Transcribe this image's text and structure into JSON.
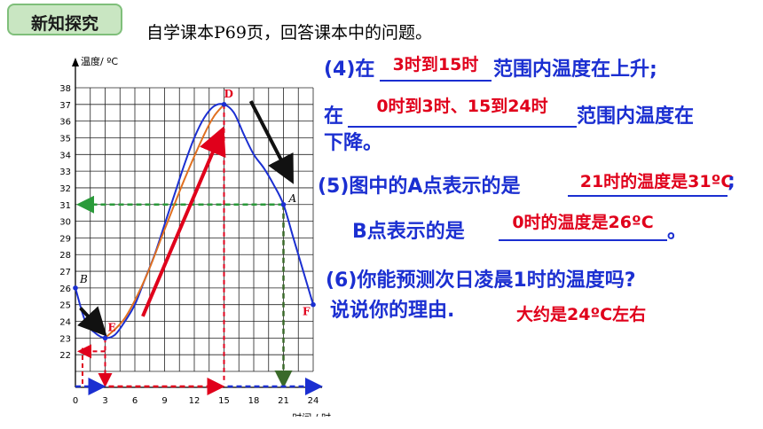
{
  "header": {
    "tag": "新知探究",
    "instruction": "自学课本P69页，回答课本中的问题。"
  },
  "chart_data": {
    "type": "line",
    "ylabel": "温度/ ºC",
    "xlabel": "时间 / 时",
    "x_ticks": [
      0,
      3,
      6,
      9,
      12,
      15,
      18,
      21,
      24
    ],
    "y_ticks": [
      22,
      23,
      24,
      25,
      26,
      27,
      28,
      29,
      30,
      31,
      32,
      33,
      34,
      35,
      36,
      37,
      38
    ],
    "xlim": [
      0,
      24
    ],
    "ylim": [
      21,
      38
    ],
    "grid": true,
    "series": [
      {
        "color": "#1b2fd1",
        "x": [
          0,
          1,
          2,
          3,
          4,
          5,
          6,
          7,
          8,
          9,
          10,
          11,
          12,
          13,
          14,
          15,
          16,
          17,
          18,
          19,
          20,
          21,
          22,
          23,
          24
        ],
        "y": [
          26,
          24,
          23.3,
          23,
          23.2,
          24,
          25,
          26.5,
          28,
          29.8,
          31.6,
          33.4,
          35,
          36.2,
          36.9,
          37,
          36.5,
          35.2,
          34,
          33.2,
          32.2,
          31,
          29,
          27,
          25
        ]
      },
      {
        "color": "#e07020",
        "x": [
          3,
          5,
          7,
          9,
          11,
          13,
          14,
          15
        ],
        "y": [
          23,
          24.2,
          26.5,
          29.5,
          32.5,
          35.2,
          36.3,
          37
        ]
      }
    ],
    "points": [
      {
        "label": "D",
        "x": 15,
        "y": 37,
        "color": "#e0001b"
      },
      {
        "label": "A",
        "x": 21,
        "y": 31,
        "color": "#000000"
      },
      {
        "label": "B",
        "x": 0,
        "y": 26,
        "color": "#000000"
      },
      {
        "label": "E",
        "x": 3,
        "y": 23,
        "color": "#e0001b"
      },
      {
        "label": "F",
        "x": 24,
        "y": 25,
        "color": "#e0001b"
      }
    ]
  },
  "questions": {
    "q4_part1": {
      "prefix": "(4)在",
      "answer": "3时到15时",
      "suffix": "范围内温度在上升;"
    },
    "q4_part2": {
      "prefix": "在",
      "answer": "0时到3时、15到24时",
      "suffix": "范围内温度在",
      "line2": "下降。"
    },
    "q5_part1": {
      "prefix": "(5)图中的A点表示的是",
      "answer": "21时的温度是31ºC",
      "suffix": ";"
    },
    "q5_part2": {
      "prefix": "B点表示的是",
      "answer": "0时的温度是26ºC",
      "suffix": "。"
    },
    "q6": {
      "line1": "(6)你能预测次日凌晨1时的温度吗?",
      "line2": "说说你的理由.",
      "answer": "大约是24ºC左右"
    }
  }
}
